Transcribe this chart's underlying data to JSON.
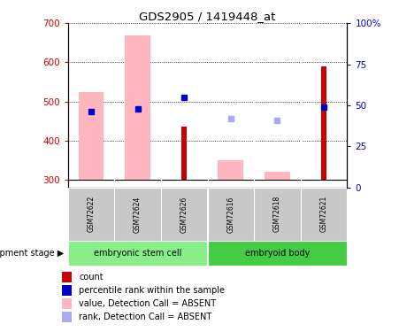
{
  "title": "GDS2905 / 1419448_at",
  "samples": [
    "GSM72622",
    "GSM72624",
    "GSM72626",
    "GSM72616",
    "GSM72618",
    "GSM72621"
  ],
  "ylim_left": [
    280,
    700
  ],
  "ylim_right": [
    0,
    100
  ],
  "yticks_left": [
    300,
    400,
    500,
    600,
    700
  ],
  "yticks_right": [
    0,
    25,
    50,
    75,
    100
  ],
  "ytick_labels_right": [
    "0",
    "25",
    "50",
    "75",
    "100%"
  ],
  "bar_bottom": 300,
  "bars_pink": [
    {
      "sample": "GSM72622",
      "value": 523
    },
    {
      "sample": "GSM72624",
      "value": 670
    },
    {
      "sample": "GSM72616",
      "value": 349
    },
    {
      "sample": "GSM72618",
      "value": 320
    }
  ],
  "bars_red": [
    {
      "sample": "GSM72626",
      "value": 435
    },
    {
      "sample": "GSM72621",
      "value": 590
    }
  ],
  "dots_dark_blue": [
    {
      "sample": "GSM72622",
      "rank": 46
    },
    {
      "sample": "GSM72624",
      "rank": 48
    },
    {
      "sample": "GSM72626",
      "rank": 55
    },
    {
      "sample": "GSM72621",
      "rank": 49
    }
  ],
  "dots_light_blue": [
    {
      "sample": "GSM72616",
      "rank": 42
    },
    {
      "sample": "GSM72618",
      "rank": 41
    }
  ],
  "color_red_bar": "#CC0000",
  "color_pink_bar": "#FFB6C1",
  "color_dark_blue": "#0000CC",
  "color_light_blue": "#AAAAEE",
  "color_tick_left": "#CC0000",
  "color_tick_right": "#0000CC",
  "color_sample_box": "#C8C8C8",
  "color_group1": "#88EE88",
  "color_group2": "#44CC44",
  "group1_name": "embryonic stem cell",
  "group2_name": "embryoid body",
  "group1_indices": [
    0,
    1,
    2
  ],
  "group2_indices": [
    3,
    4,
    5
  ],
  "legend_items": [
    {
      "label": "count",
      "color": "#CC0000"
    },
    {
      "label": "percentile rank within the sample",
      "color": "#0000CC"
    },
    {
      "label": "value, Detection Call = ABSENT",
      "color": "#FFB6C1"
    },
    {
      "label": "rank, Detection Call = ABSENT",
      "color": "#AAAAEE"
    }
  ],
  "dev_stage_label": "development stage"
}
